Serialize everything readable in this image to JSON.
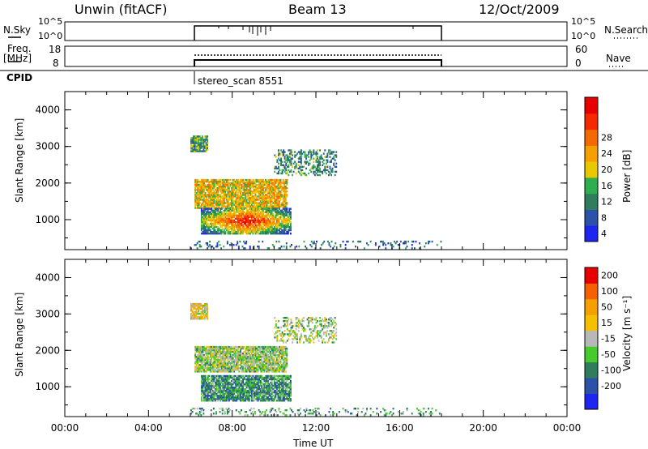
{
  "header": {
    "station": "Unwin (fitACF)",
    "beam": "Beam 13",
    "date": "12/Oct/2009"
  },
  "strip_panels": {
    "nsky_label": "N.Sky",
    "nsky_left_ticks": [
      "10^5",
      "10^0"
    ],
    "nsky_right_ticks": [
      "10^5",
      "10^0"
    ],
    "nsearch_label": "N.Search",
    "freq_label_line1": "Freq.",
    "freq_label_line2": "[MHz]",
    "freq_ticks": [
      "18",
      "8"
    ],
    "nave_ticks": [
      "60",
      "0"
    ],
    "nave_label": "Nave",
    "cpid_label": "CPID",
    "cpid_value": "stereo_scan 8551"
  },
  "chart_data": [
    {
      "type": "heatmap",
      "title": "",
      "ylabel": "Slant Range [km]",
      "xlabel": "",
      "x_ticks": [
        "00:00",
        "04:00",
        "08:00",
        "12:00",
        "16:00",
        "20:00",
        "00:00"
      ],
      "y_ticks": [
        1000,
        2000,
        3000,
        4000
      ],
      "xlim_hours": [
        0,
        24
      ],
      "ylim": [
        180,
        4500
      ],
      "colorbar": {
        "label": "Power [dB]",
        "ticks": [
          4,
          8,
          12,
          16,
          20,
          24,
          28
        ],
        "colors": [
          "#1f25f0",
          "#2a52a8",
          "#2e7d5e",
          "#2fae4f",
          "#e8c800",
          "#f5a000",
          "#f56a00",
          "#f52a00",
          "#e80000"
        ]
      },
      "regions": [
        {
          "t0": 6.0,
          "t1": 6.8,
          "r0": 2850,
          "r1": 3300,
          "level": 0.35
        },
        {
          "t0": 6.2,
          "t1": 10.6,
          "r0": 1300,
          "r1": 2100,
          "level": 0.55
        },
        {
          "t0": 6.5,
          "t1": 10.8,
          "r0": 600,
          "r1": 1300,
          "level": 0.8
        },
        {
          "t0": 10.0,
          "t1": 13.0,
          "r0": 2200,
          "r1": 2900,
          "level": 0.3
        },
        {
          "t0": 6.0,
          "t1": 18.0,
          "r0": 200,
          "r1": 400,
          "level": 0.2
        }
      ]
    },
    {
      "type": "heatmap",
      "title": "",
      "ylabel": "Slant Range [km]",
      "xlabel": "Time UT",
      "x_ticks": [
        "00:00",
        "04:00",
        "08:00",
        "12:00",
        "16:00",
        "20:00",
        "00:00"
      ],
      "y_ticks": [
        1000,
        2000,
        3000,
        4000
      ],
      "xlim_hours": [
        0,
        24
      ],
      "ylim": [
        180,
        4500
      ],
      "colorbar": {
        "label": "Velocity [m s⁻¹]",
        "ticks": [
          200,
          100,
          50,
          15,
          -15,
          -50,
          -100,
          -200
        ],
        "colors": [
          "#1f25f0",
          "#2a52a8",
          "#2e7d5e",
          "#46cc2a",
          "#b8b8b8",
          "#f5c000",
          "#f5a000",
          "#f56000",
          "#e80000"
        ]
      },
      "regions": [
        {
          "t0": 6.0,
          "t1": 6.8,
          "r0": 2850,
          "r1": 3300,
          "level": 0.6
        },
        {
          "t0": 6.2,
          "t1": 10.6,
          "r0": 1400,
          "r1": 2100,
          "level": 0.45
        },
        {
          "t0": 6.5,
          "t1": 10.8,
          "r0": 600,
          "r1": 1300,
          "level": 0.3
        },
        {
          "t0": 10.0,
          "t1": 13.0,
          "r0": 2200,
          "r1": 2900,
          "level": 0.45
        },
        {
          "t0": 6.0,
          "t1": 18.0,
          "r0": 200,
          "r1": 400,
          "level": 0.35
        }
      ]
    }
  ]
}
